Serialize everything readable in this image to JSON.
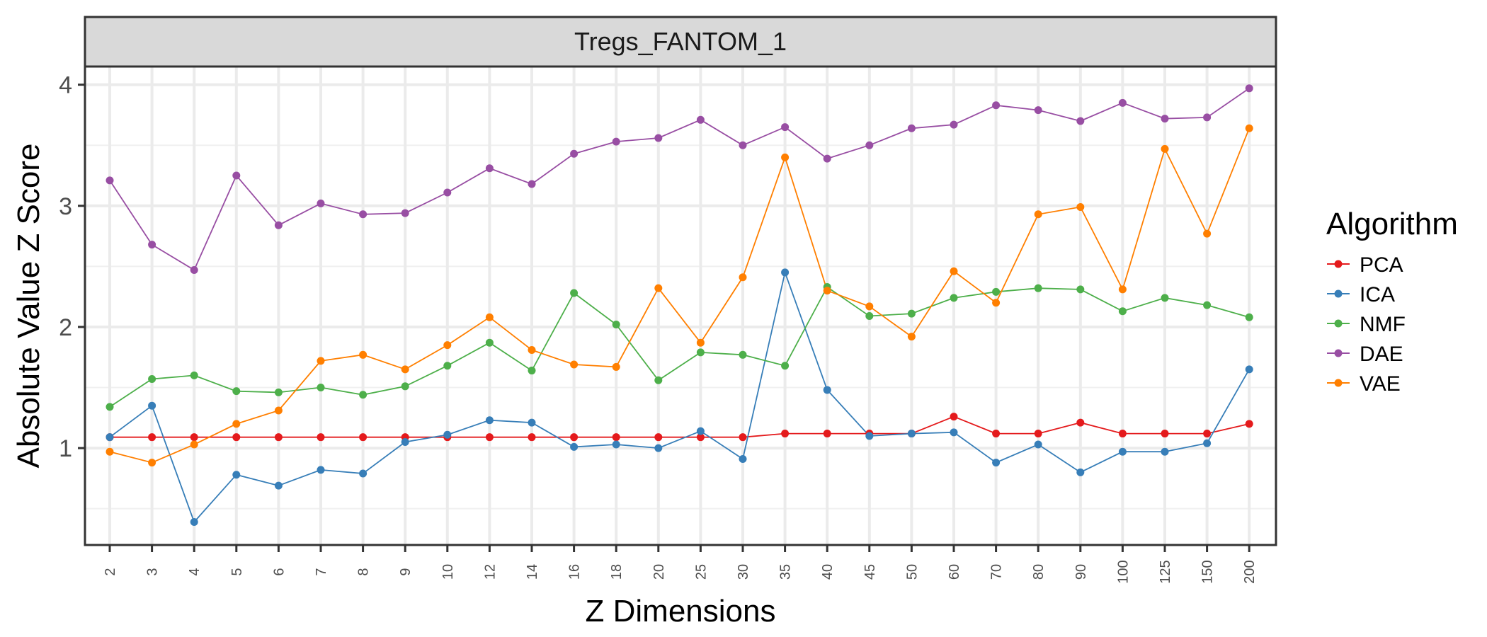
{
  "chart_data": {
    "type": "line",
    "title": "Tregs_FANTOM_1",
    "xlabel": "Z Dimensions",
    "ylabel": "Absolute Value Z Score",
    "categories": [
      "2",
      "3",
      "4",
      "5",
      "6",
      "7",
      "8",
      "9",
      "10",
      "12",
      "14",
      "16",
      "18",
      "20",
      "25",
      "30",
      "35",
      "40",
      "45",
      "50",
      "60",
      "70",
      "80",
      "90",
      "100",
      "125",
      "150",
      "200"
    ],
    "ylim": [
      0.2,
      4.15
    ],
    "yticks": [
      1,
      2,
      3,
      4
    ],
    "grid": true,
    "legend": {
      "title": "Algorithm",
      "position": "right"
    },
    "series": [
      {
        "name": "PCA",
        "color": "#e41a1c",
        "values": [
          1.09,
          1.09,
          1.09,
          1.09,
          1.09,
          1.09,
          1.09,
          1.09,
          1.09,
          1.09,
          1.09,
          1.09,
          1.09,
          1.09,
          1.09,
          1.09,
          1.12,
          1.12,
          1.12,
          1.12,
          1.26,
          1.12,
          1.12,
          1.21,
          1.12,
          1.12,
          1.12,
          1.2
        ]
      },
      {
        "name": "ICA",
        "color": "#377eb8",
        "values": [
          1.09,
          1.35,
          0.39,
          0.78,
          0.69,
          0.82,
          0.79,
          1.05,
          1.11,
          1.23,
          1.21,
          1.01,
          1.03,
          1.0,
          1.14,
          0.91,
          2.45,
          1.48,
          1.1,
          1.12,
          1.13,
          0.88,
          1.03,
          0.8,
          0.97,
          0.97,
          1.04,
          1.65
        ]
      },
      {
        "name": "NMF",
        "color": "#4daf4a",
        "values": [
          1.34,
          1.57,
          1.6,
          1.47,
          1.46,
          1.5,
          1.44,
          1.51,
          1.68,
          1.87,
          1.64,
          2.28,
          2.02,
          1.56,
          1.79,
          1.77,
          1.68,
          2.33,
          2.09,
          2.11,
          2.24,
          2.29,
          2.32,
          2.31,
          2.13,
          2.24,
          2.18,
          2.08
        ]
      },
      {
        "name": "DAE",
        "color": "#984ea3",
        "values": [
          3.21,
          2.68,
          2.47,
          3.25,
          2.84,
          3.02,
          2.93,
          2.94,
          3.11,
          3.31,
          3.18,
          3.43,
          3.53,
          3.56,
          3.71,
          3.5,
          3.65,
          3.39,
          3.5,
          3.64,
          3.67,
          3.83,
          3.79,
          3.7,
          3.85,
          3.72,
          3.73,
          3.97
        ]
      },
      {
        "name": "VAE",
        "color": "#ff7f00",
        "values": [
          0.97,
          0.88,
          1.03,
          1.2,
          1.31,
          1.72,
          1.77,
          1.65,
          1.85,
          2.08,
          1.81,
          1.69,
          1.67,
          2.32,
          1.87,
          2.41,
          3.4,
          2.3,
          2.17,
          1.92,
          2.46,
          2.2,
          2.93,
          2.99,
          2.31,
          3.47,
          2.77,
          3.64
        ]
      }
    ]
  }
}
